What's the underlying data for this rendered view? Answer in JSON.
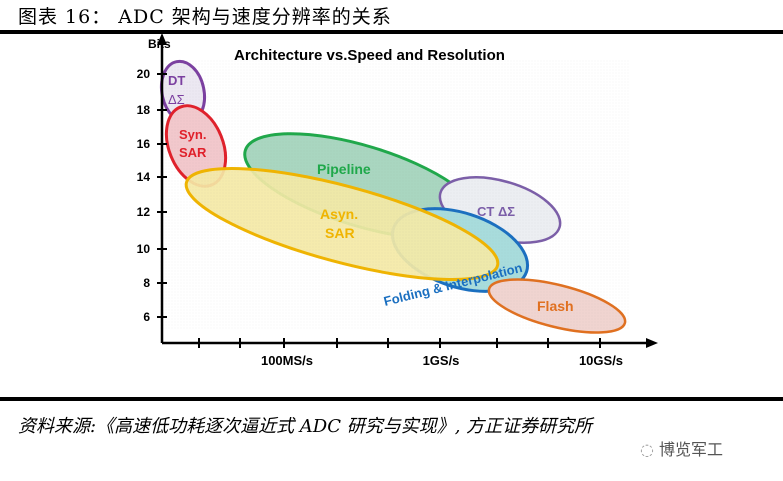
{
  "figure_title": "图表 16： ADC 架构与速度分辨率的关系",
  "diagram": {
    "title": "Architecture vs.Speed and Resolution",
    "y_axis_label": "Bits",
    "y_ticks": [
      "20",
      "18",
      "16",
      "14",
      "12",
      "10",
      "8",
      "6"
    ],
    "x_tick_labels": [
      "100MS/s",
      "1GS/s",
      "10GS/s"
    ],
    "regions": [
      {
        "label_1": "DT",
        "label_2": "ΔΣ",
        "color": "#7b3fa0"
      },
      {
        "label_1": "Syn.",
        "label_2": "SAR",
        "color": "#e0202a"
      },
      {
        "label_1": "Pipeline",
        "color": "#1fa84a"
      },
      {
        "label_1": "CT ΔΣ",
        "color": "#7b5ea8"
      },
      {
        "label_1": "Folding & Interpolation",
        "color": "#1a6fc0"
      },
      {
        "label_1": "Asyn.",
        "label_2": "SAR",
        "color": "#f0b400"
      },
      {
        "label_1": "Flash",
        "color": "#e07020"
      }
    ]
  },
  "source": "资料来源:《高速低功耗逐次逼近式 ADC 研究与实现》, 方正证券研究所",
  "watermark": "博览军工"
}
